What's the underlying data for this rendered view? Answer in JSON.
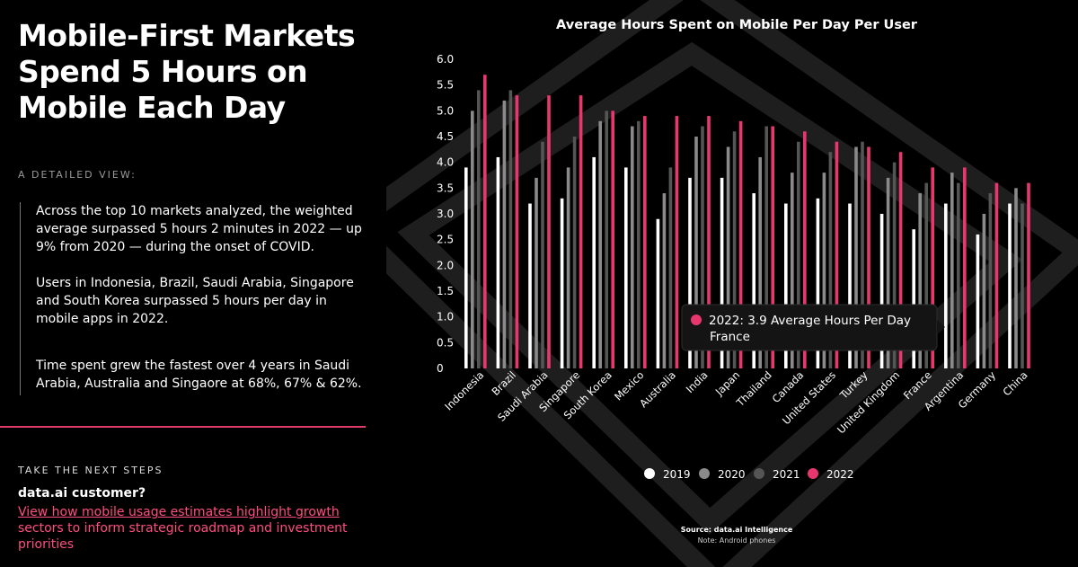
{
  "headline": "Mobile-First Markets Spend 5 Hours on Mobile Each Day",
  "detail_heading": "A DETAILED VIEW:",
  "paragraphs": [
    "Across the top 10 markets analyzed, the weighted average surpassed 5 hours 2 minutes in 2022 — up 9% from 2020 — during the onset of COVID.",
    "Users in Indonesia, Brazil, Saudi Arabia, Singapore and South Korea surpassed 5 hours per day in mobile apps in 2022.",
    "Time spent grew the fastest over 4 years in Saudi Arabia, Australia and Singaore at 68%, 67% & 62%."
  ],
  "next_steps": {
    "heading": "TAKE THE NEXT STEPS",
    "customer_label": "data.ai customer?",
    "link_text": "View how mobile usage estimates highlight growth",
    "link_rest": "sectors to inform strategic roadmap and investment priorities"
  },
  "colors": {
    "accent": "#e8376f",
    "y2019": "#ffffff",
    "y2020": "#8a8a8a",
    "y2021": "#555555",
    "y2022": "#e8376f"
  },
  "tooltip": {
    "line1": "2022: 3.9 Average Hours Per Day",
    "line2": "France"
  },
  "source": "Source: data.ai Intelligence",
  "note": "Note: Android phones",
  "chart_data": {
    "type": "bar",
    "title": "Average Hours Spent on Mobile Per Day Per User",
    "ylim": [
      0,
      6
    ],
    "yticks": [
      "0",
      "0.5",
      "1.0",
      "1.5",
      "2.0",
      "2.5",
      "3.0",
      "3.5",
      "4.0",
      "4.5",
      "5.0",
      "5.5",
      "6.0"
    ],
    "categories": [
      "Indonesia",
      "Brazil",
      "Saudi Arabia",
      "Singapore",
      "South Korea",
      "Mexico",
      "Australia",
      "India",
      "Japan",
      "Thailand",
      "Canada",
      "United States",
      "Turkey",
      "United Kingdom",
      "France",
      "Argentina",
      "Germany",
      "China"
    ],
    "series": [
      {
        "name": "2019",
        "values": [
          3.9,
          4.1,
          3.2,
          3.3,
          4.1,
          3.9,
          2.9,
          3.7,
          3.7,
          3.4,
          3.2,
          3.3,
          3.2,
          3.0,
          2.7,
          3.2,
          2.6,
          3.2
        ]
      },
      {
        "name": "2020",
        "values": [
          5.0,
          5.2,
          3.7,
          3.9,
          4.8,
          4.7,
          3.4,
          4.5,
          4.3,
          4.1,
          3.8,
          3.8,
          4.3,
          3.7,
          3.4,
          3.8,
          3.0,
          3.5
        ]
      },
      {
        "name": "2021",
        "values": [
          5.4,
          5.4,
          4.4,
          4.5,
          5.0,
          4.8,
          3.9,
          4.7,
          4.6,
          4.7,
          4.4,
          4.2,
          4.4,
          4.0,
          3.6,
          3.6,
          3.4,
          3.2
        ]
      },
      {
        "name": "2022",
        "values": [
          5.7,
          5.3,
          5.3,
          5.3,
          5.0,
          4.9,
          4.9,
          4.9,
          4.8,
          4.7,
          4.6,
          4.4,
          4.3,
          4.2,
          3.9,
          3.9,
          3.6,
          3.6
        ]
      }
    ],
    "legend": [
      "2019",
      "2020",
      "2021",
      "2022"
    ],
    "legend_position": "bottom-center",
    "grid": false
  }
}
